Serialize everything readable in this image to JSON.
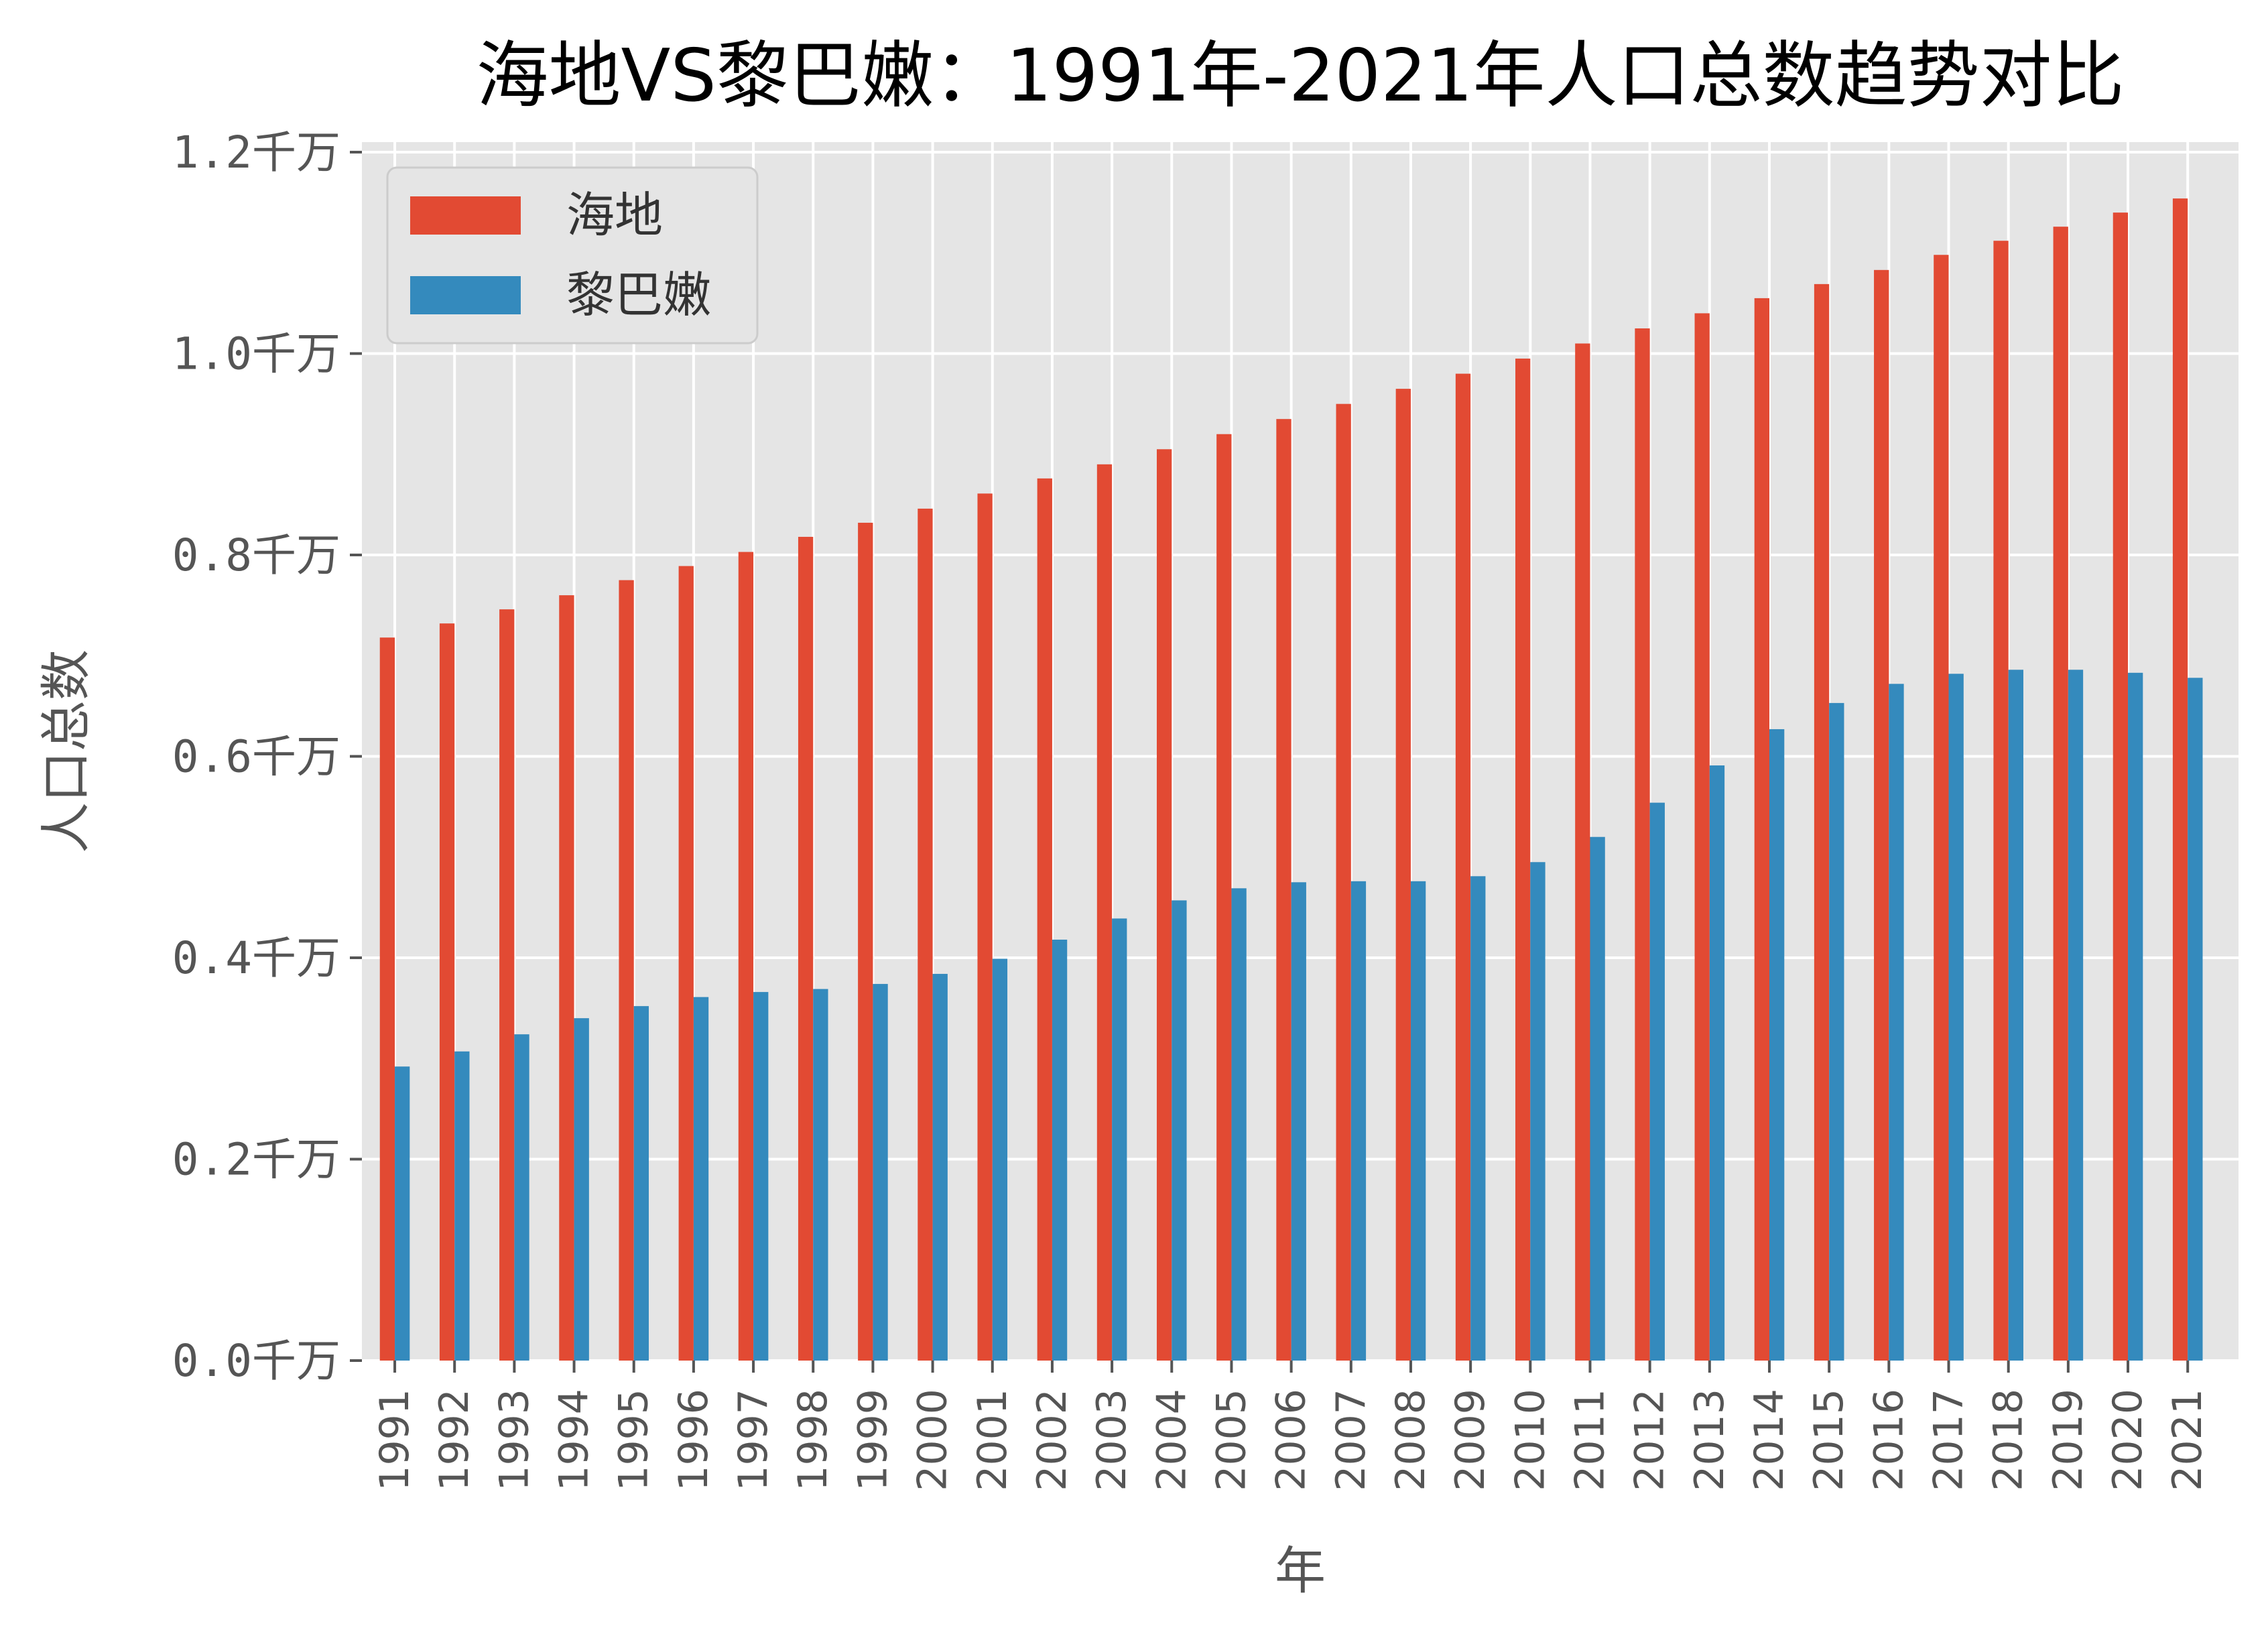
{
  "chart_data": {
    "type": "bar",
    "title": "海地VS黎巴嫩：1991年-2021年人口总数趋势对比",
    "xlabel": "年",
    "ylabel": "人口总数",
    "ylim": [
      0,
      1.21
    ],
    "y_unit_suffix": "千万",
    "yticks": [
      "0.0千万",
      "0.2千万",
      "0.4千万",
      "0.6千万",
      "0.8千万",
      "1.0千万",
      "1.2千万"
    ],
    "ytick_values": [
      0,
      0.2,
      0.4,
      0.6,
      0.8,
      1.0,
      1.2
    ],
    "grid": true,
    "legend": "top-left",
    "categories": [
      "1991",
      "1992",
      "1993",
      "1994",
      "1995",
      "1996",
      "1997",
      "1998",
      "1999",
      "2000",
      "2001",
      "2002",
      "2003",
      "2004",
      "2005",
      "2006",
      "2007",
      "2008",
      "2009",
      "2010",
      "2011",
      "2012",
      "2013",
      "2014",
      "2015",
      "2016",
      "2017",
      "2018",
      "2019",
      "2020",
      "2021"
    ],
    "series": [
      {
        "name": "海地",
        "color": "#E24A33",
        "values": [
          0.718,
          0.732,
          0.746,
          0.76,
          0.775,
          0.789,
          0.803,
          0.818,
          0.832,
          0.846,
          0.861,
          0.876,
          0.89,
          0.905,
          0.92,
          0.935,
          0.95,
          0.965,
          0.98,
          0.995,
          1.01,
          1.025,
          1.04,
          1.055,
          1.069,
          1.083,
          1.098,
          1.112,
          1.126,
          1.14,
          1.154
        ]
      },
      {
        "name": "黎巴嫩",
        "color": "#348ABD",
        "values": [
          0.292,
          0.307,
          0.324,
          0.34,
          0.352,
          0.361,
          0.366,
          0.369,
          0.374,
          0.384,
          0.399,
          0.418,
          0.439,
          0.457,
          0.469,
          0.475,
          0.476,
          0.476,
          0.481,
          0.495,
          0.52,
          0.554,
          0.591,
          0.627,
          0.653,
          0.672,
          0.682,
          0.686,
          0.686,
          0.683,
          0.678
        ]
      }
    ]
  },
  "style": {
    "plot_background": "#E5E5E5",
    "grid_color": "#FFFFFF",
    "tick_color": "#555555"
  }
}
